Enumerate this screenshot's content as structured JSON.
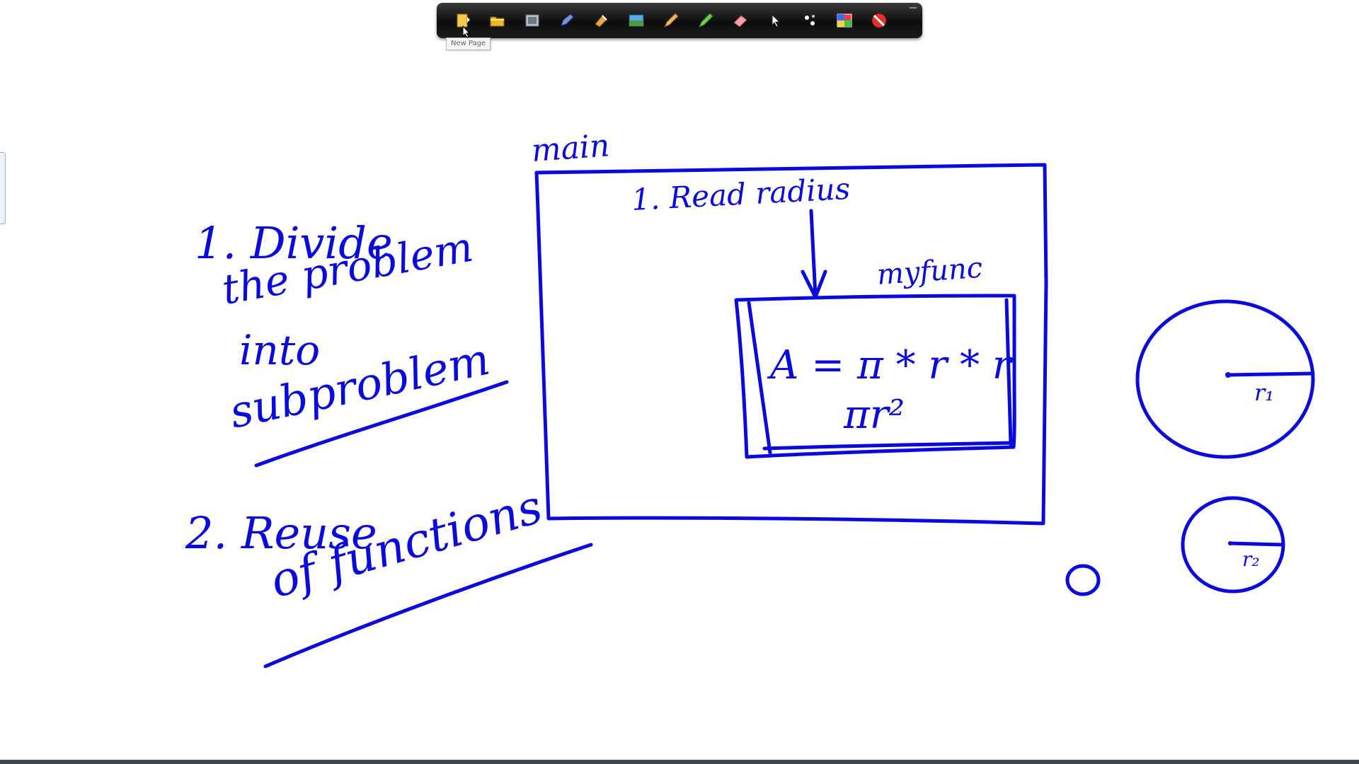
{
  "toolbar": {
    "tools": [
      {
        "icon": "new-page-icon",
        "color": "#f3c84b"
      },
      {
        "icon": "open-folder-icon",
        "color": "#f0b429"
      },
      {
        "icon": "screen-capture-icon",
        "color": "#b9c2cc"
      },
      {
        "icon": "pen-icon",
        "color": "#7d8fe0"
      },
      {
        "icon": "highlighter-icon",
        "color": "#e0a84f"
      },
      {
        "icon": "screen-shade-icon",
        "color": "#5fa8e8"
      },
      {
        "icon": "marker-icon",
        "color": "#e9b46a"
      },
      {
        "icon": "green-pen-icon",
        "color": "#6cd04a"
      },
      {
        "icon": "eraser-icon",
        "color": "#f0a0a8"
      },
      {
        "icon": "pointer-icon",
        "color": "#ffffff"
      },
      {
        "icon": "laser-pointer-icon",
        "color": "#ffffff"
      },
      {
        "icon": "color-palette-icon",
        "color": "#ff3b3b"
      },
      {
        "icon": "close-no-icon",
        "color": "#e53030"
      }
    ],
    "tooltip": "New Page"
  },
  "whiteboard": {
    "ink_color": "#0a0adc",
    "main_label": "main",
    "point1_lines": [
      "1. Divide",
      "the problem",
      "into",
      "subproblem"
    ],
    "point2_lines": [
      "2.  Reuse",
      "of functions"
    ],
    "read_step": "1. Read  radius",
    "func_label": "myfunc",
    "formula_line1": "A = π * r * r",
    "formula_line2": "πr²",
    "circle1_label": "r₁",
    "circle2_label": "r₂",
    "small_circle_label": "o"
  }
}
